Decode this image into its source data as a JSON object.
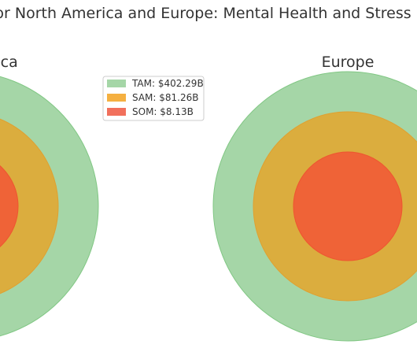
{
  "chart_data": {
    "type": "nested-circles",
    "title": "TAM, SAM, and SOM for North America and Europe: Mental Health and Stress Management Services",
    "legend_placement": "top-center",
    "series": [
      {
        "name": "TAM: $402.29B",
        "key": "TAM",
        "color": "#a5d6a7"
      },
      {
        "name": "SAM: $81.26B",
        "key": "SAM",
        "color": "#f5b041"
      },
      {
        "name": "SOM: $8.13B",
        "key": "SOM",
        "color": "#f1705c"
      }
    ],
    "panels": [
      {
        "title": "North America",
        "circles": {
          "TAM": 402.29,
          "SAM": 81.26,
          "SOM": 8.13
        }
      },
      {
        "title": "Europe",
        "circles": {
          "TAM": 402.29,
          "SAM": 81.26,
          "SOM": 8.13
        }
      }
    ]
  }
}
